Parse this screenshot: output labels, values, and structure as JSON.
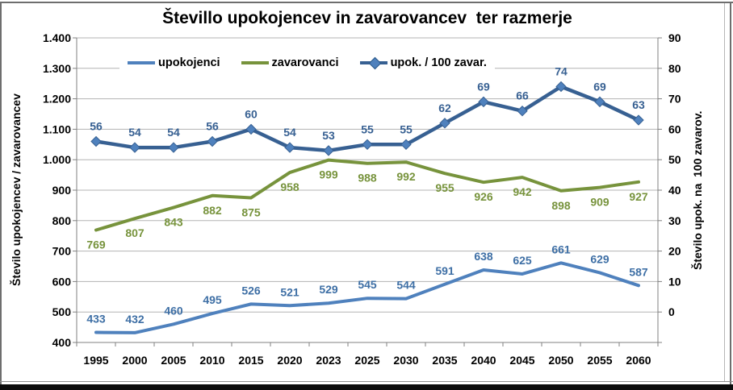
{
  "chart_data": {
    "type": "line",
    "title": "Števillo upokojencev in zavarovancev  ter razmerje",
    "categories": [
      "1995",
      "2000",
      "2005",
      "2010",
      "2015",
      "2020",
      "2023",
      "2025",
      "2030",
      "2035",
      "2040",
      "2045",
      "2050",
      "2055",
      "2060"
    ],
    "series": [
      {
        "name": "upokojenci",
        "axis": "left",
        "color": "#4F81BD",
        "label_color": "#3E6FA5",
        "labels": "above",
        "marker": "none",
        "values": [
          433,
          432,
          460,
          495,
          526,
          521,
          529,
          545,
          544,
          591,
          638,
          625,
          661,
          629,
          587
        ]
      },
      {
        "name": "zavarovanci",
        "axis": "left",
        "color": "#77933C",
        "label_color": "#77933C",
        "labels": "below",
        "marker": "none",
        "values": [
          769,
          807,
          843,
          882,
          875,
          958,
          999,
          988,
          992,
          955,
          926,
          942,
          898,
          909,
          927
        ]
      },
      {
        "name": "upok. / 100 zavar.",
        "axis": "right",
        "color": "#376092",
        "label_color": "#376092",
        "labels": "above",
        "marker": "diamond",
        "marker_fill": "#4F81BD",
        "values": [
          56,
          54,
          54,
          56,
          60,
          54,
          53,
          55,
          55,
          62,
          69,
          66,
          74,
          69,
          63
        ]
      }
    ],
    "left_axis": {
      "label": "Število upokojencev / zavarovancev",
      "ylim": [
        400,
        1400
      ],
      "tick_labels": [
        "1.400",
        "1.300",
        "1.200",
        "1.100",
        "1.000",
        "900",
        "800",
        "700",
        "600",
        "500",
        "400"
      ]
    },
    "right_axis": {
      "label": "Število upok. na  100 zavarov.",
      "ylim": [
        -10,
        90
      ],
      "tick_labels": [
        "90",
        "80",
        "70",
        "60",
        "50",
        "40",
        "30",
        "20",
        "10",
        "0"
      ]
    },
    "grid": true,
    "legend_position": "top-inside"
  },
  "colors": {
    "gridline": "#B3B3B3",
    "axis_line": "#808080",
    "text": "#000000",
    "background": "#FFFFFF",
    "bottom_bar": "#0B0B0B",
    "frame_border": "#6E6E6E"
  }
}
